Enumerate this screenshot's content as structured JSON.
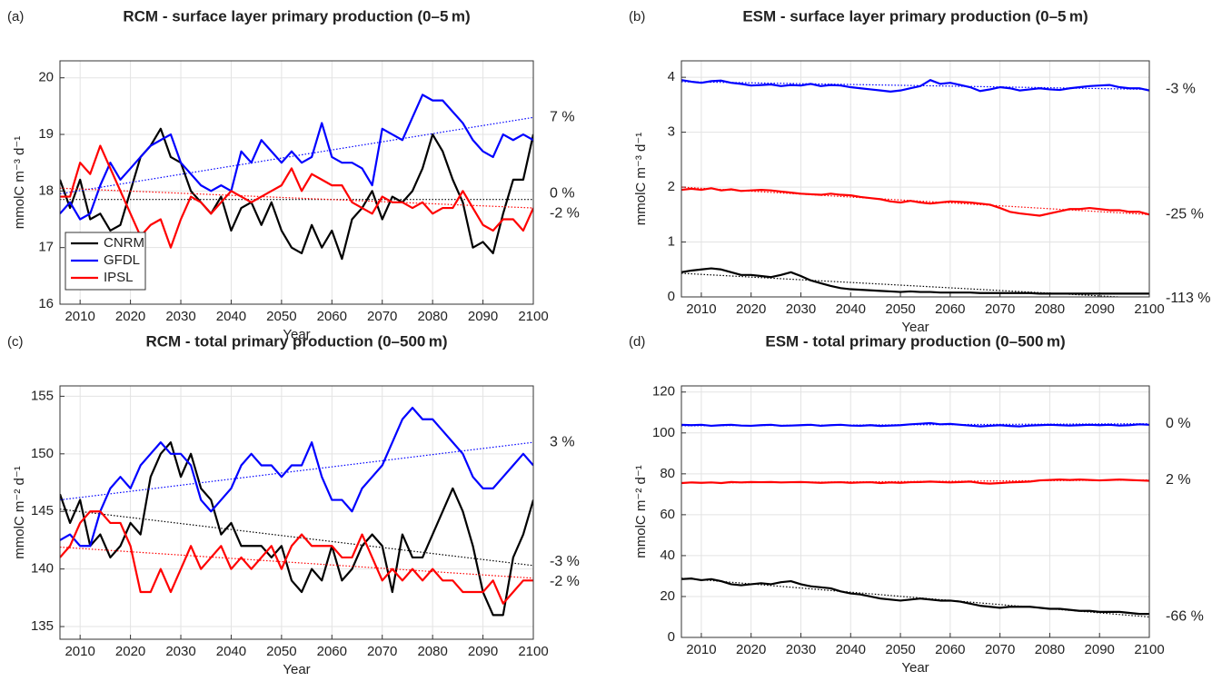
{
  "chart_data": [
    {
      "type": "line",
      "label": "(a)",
      "title": "RCM - surface layer primary production (0–5 m)",
      "xlabel": "Year",
      "ylabel": "mmolC m⁻³ d⁻¹",
      "xlim": [
        2006,
        2100
      ],
      "xticks": [
        2010,
        2020,
        2030,
        2040,
        2050,
        2060,
        2070,
        2080,
        2090,
        2100
      ],
      "ylim": [
        16,
        20.3
      ],
      "yticks": [
        16,
        17,
        18,
        19,
        20
      ],
      "grid": true,
      "legend": "lower left",
      "x": [
        2006,
        2008,
        2010,
        2012,
        2014,
        2016,
        2018,
        2020,
        2022,
        2024,
        2026,
        2028,
        2030,
        2032,
        2034,
        2036,
        2038,
        2040,
        2042,
        2044,
        2046,
        2048,
        2050,
        2052,
        2054,
        2056,
        2058,
        2060,
        2062,
        2064,
        2066,
        2068,
        2070,
        2072,
        2074,
        2076,
        2078,
        2080,
        2082,
        2084,
        2086,
        2088,
        2090,
        2092,
        2094,
        2096,
        2098,
        2100
      ],
      "series": [
        {
          "name": "CNRM",
          "color": "#000000",
          "annotation": "0 %",
          "trend": [
            17.85,
            17.85
          ],
          "values": [
            18.2,
            17.7,
            18.2,
            17.5,
            17.6,
            17.3,
            17.4,
            18.0,
            18.6,
            18.8,
            19.1,
            18.6,
            18.5,
            18.0,
            17.8,
            17.6,
            17.9,
            17.3,
            17.7,
            17.8,
            17.4,
            17.8,
            17.3,
            17.0,
            16.9,
            17.4,
            17.0,
            17.3,
            16.8,
            17.5,
            17.7,
            18.0,
            17.5,
            17.9,
            17.8,
            18.0,
            18.4,
            19.0,
            18.7,
            18.2,
            17.8,
            17.0,
            17.1,
            16.9,
            17.6,
            18.2,
            18.2,
            19.0
          ]
        },
        {
          "name": "GFDL",
          "color": "#0000ff",
          "annotation": "7 %",
          "trend": [
            17.95,
            19.3
          ],
          "values": [
            17.6,
            17.8,
            17.5,
            17.6,
            18.1,
            18.5,
            18.2,
            18.4,
            18.6,
            18.8,
            18.9,
            19.0,
            18.5,
            18.3,
            18.1,
            18.0,
            18.1,
            18.0,
            18.7,
            18.5,
            18.9,
            18.7,
            18.5,
            18.7,
            18.5,
            18.6,
            19.2,
            18.6,
            18.5,
            18.5,
            18.4,
            18.1,
            19.1,
            19.0,
            18.9,
            19.3,
            19.7,
            19.6,
            19.6,
            19.4,
            19.2,
            18.9,
            18.7,
            18.6,
            19.0,
            18.9,
            19.0,
            18.9
          ]
        },
        {
          "name": "IPSL",
          "color": "#ff0000",
          "annotation": "-2 %",
          "trend": [
            18.05,
            17.7
          ],
          "values": [
            17.9,
            17.9,
            18.5,
            18.3,
            18.8,
            18.4,
            18.0,
            17.6,
            17.2,
            17.4,
            17.5,
            17.0,
            17.5,
            17.9,
            17.8,
            17.6,
            17.8,
            18.0,
            17.9,
            17.8,
            17.9,
            18.0,
            18.1,
            18.4,
            18.0,
            18.3,
            18.2,
            18.1,
            18.1,
            17.8,
            17.7,
            17.6,
            17.9,
            17.8,
            17.8,
            17.7,
            17.8,
            17.6,
            17.7,
            17.7,
            18.0,
            17.7,
            17.4,
            17.3,
            17.5,
            17.5,
            17.3,
            17.7
          ]
        }
      ]
    },
    {
      "type": "line",
      "label": "(b)",
      "title": "ESM - surface layer primary production (0–5 m)",
      "xlabel": "Year",
      "ylabel": "mmolC m⁻³ d⁻¹",
      "xlim": [
        2006,
        2100
      ],
      "xticks": [
        2010,
        2020,
        2030,
        2040,
        2050,
        2060,
        2070,
        2080,
        2090,
        2100
      ],
      "ylim": [
        0,
        4.3
      ],
      "yticks": [
        0,
        1,
        2,
        3,
        4
      ],
      "grid": true,
      "x": [
        2006,
        2008,
        2010,
        2012,
        2014,
        2016,
        2018,
        2020,
        2022,
        2024,
        2026,
        2028,
        2030,
        2032,
        2034,
        2036,
        2038,
        2040,
        2042,
        2044,
        2046,
        2048,
        2050,
        2052,
        2054,
        2056,
        2058,
        2060,
        2062,
        2064,
        2066,
        2068,
        2070,
        2072,
        2074,
        2076,
        2078,
        2080,
        2082,
        2084,
        2086,
        2088,
        2090,
        2092,
        2094,
        2096,
        2098,
        2100
      ],
      "series": [
        {
          "name": "CNRM",
          "color": "#000000",
          "annotation": "-113 %",
          "trend": [
            0.43,
            -0.03
          ],
          "values": [
            0.45,
            0.48,
            0.5,
            0.52,
            0.5,
            0.45,
            0.4,
            0.4,
            0.38,
            0.36,
            0.4,
            0.45,
            0.38,
            0.3,
            0.25,
            0.2,
            0.16,
            0.14,
            0.13,
            0.12,
            0.11,
            0.1,
            0.09,
            0.1,
            0.09,
            0.09,
            0.08,
            0.08,
            0.08,
            0.08,
            0.07,
            0.07,
            0.07,
            0.07,
            0.07,
            0.07,
            0.06,
            0.06,
            0.06,
            0.06,
            0.06,
            0.06,
            0.06,
            0.06,
            0.06,
            0.06,
            0.06,
            0.06
          ]
        },
        {
          "name": "GFDL",
          "color": "#0000ff",
          "annotation": "-3 %",
          "trend": [
            3.92,
            3.78
          ],
          "values": [
            3.95,
            3.92,
            3.9,
            3.93,
            3.94,
            3.9,
            3.88,
            3.85,
            3.86,
            3.87,
            3.84,
            3.86,
            3.85,
            3.88,
            3.84,
            3.86,
            3.85,
            3.82,
            3.8,
            3.78,
            3.76,
            3.74,
            3.76,
            3.8,
            3.84,
            3.95,
            3.88,
            3.9,
            3.86,
            3.82,
            3.75,
            3.78,
            3.82,
            3.8,
            3.76,
            3.78,
            3.8,
            3.78,
            3.77,
            3.8,
            3.82,
            3.84,
            3.85,
            3.86,
            3.82,
            3.8,
            3.8,
            3.76
          ]
        },
        {
          "name": "IPSL",
          "color": "#ff0000",
          "annotation": "-25 %",
          "trend": [
            2.0,
            1.5
          ],
          "values": [
            1.95,
            1.97,
            1.95,
            1.98,
            1.94,
            1.96,
            1.93,
            1.94,
            1.95,
            1.94,
            1.92,
            1.9,
            1.88,
            1.87,
            1.86,
            1.88,
            1.86,
            1.85,
            1.82,
            1.8,
            1.78,
            1.74,
            1.72,
            1.75,
            1.72,
            1.7,
            1.72,
            1.74,
            1.73,
            1.72,
            1.7,
            1.68,
            1.62,
            1.55,
            1.52,
            1.5,
            1.48,
            1.52,
            1.56,
            1.6,
            1.6,
            1.62,
            1.6,
            1.58,
            1.58,
            1.55,
            1.55,
            1.5
          ]
        }
      ]
    },
    {
      "type": "line",
      "label": "(c)",
      "title": "RCM - total primary production (0–500 m)",
      "xlabel": "Year",
      "ylabel": "mmolC m⁻² d⁻¹",
      "xlim": [
        2006,
        2100
      ],
      "xticks": [
        2010,
        2020,
        2030,
        2040,
        2050,
        2060,
        2070,
        2080,
        2090,
        2100
      ],
      "ylim": [
        133.9,
        155.9
      ],
      "yticks": [
        135,
        140,
        145,
        150,
        155
      ],
      "grid": true,
      "x": [
        2006,
        2008,
        2010,
        2012,
        2014,
        2016,
        2018,
        2020,
        2022,
        2024,
        2026,
        2028,
        2030,
        2032,
        2034,
        2036,
        2038,
        2040,
        2042,
        2044,
        2046,
        2048,
        2050,
        2052,
        2054,
        2056,
        2058,
        2060,
        2062,
        2064,
        2066,
        2068,
        2070,
        2072,
        2074,
        2076,
        2078,
        2080,
        2082,
        2084,
        2086,
        2088,
        2090,
        2092,
        2094,
        2096,
        2098,
        2100
      ],
      "series": [
        {
          "name": "CNRM",
          "color": "#000000",
          "annotation": "-3 %",
          "trend": [
            145.2,
            140.3
          ],
          "values": [
            146.5,
            144,
            146,
            142,
            143,
            141,
            142,
            144,
            143,
            148,
            150,
            151,
            148,
            150,
            147,
            146,
            143,
            144,
            142,
            142,
            142,
            141,
            142,
            139,
            138,
            140,
            139,
            142,
            139,
            140,
            142,
            143,
            142,
            138,
            143,
            141,
            141,
            143,
            145,
            147,
            145,
            142,
            138,
            136,
            136,
            141,
            143,
            146
          ]
        },
        {
          "name": "GFDL",
          "color": "#0000ff",
          "annotation": "3 %",
          "trend": [
            146,
            151
          ],
          "values": [
            142.5,
            143,
            142,
            142,
            145,
            147,
            148,
            147,
            149,
            150,
            151,
            150,
            150,
            149,
            146,
            145,
            146,
            147,
            149,
            150,
            149,
            149,
            148,
            149,
            149,
            151,
            148,
            146,
            146,
            145,
            147,
            148,
            149,
            151,
            153,
            154,
            153,
            153,
            152,
            151,
            150,
            148,
            147,
            147,
            148,
            149,
            150,
            149
          ]
        },
        {
          "name": "IPSL",
          "color": "#ff0000",
          "annotation": "-2 %",
          "trend": [
            141.9,
            139.2
          ],
          "values": [
            141,
            142,
            144,
            145,
            145,
            144,
            144,
            142,
            138,
            138,
            140,
            138,
            140,
            142,
            140,
            141,
            142,
            140,
            141,
            140,
            141,
            142,
            140,
            142,
            143,
            142,
            142,
            142,
            141,
            141,
            143,
            141,
            139,
            140,
            139,
            140,
            139,
            140,
            139,
            139,
            138,
            138,
            138,
            139,
            137,
            138,
            139,
            139
          ]
        }
      ]
    },
    {
      "type": "line",
      "label": "(d)",
      "title": "ESM - total primary production (0–500 m)",
      "xlabel": "Year",
      "ylabel": "mmolC m⁻² d⁻¹",
      "xlim": [
        2006,
        2100
      ],
      "xticks": [
        2010,
        2020,
        2030,
        2040,
        2050,
        2060,
        2070,
        2080,
        2090,
        2100
      ],
      "ylim": [
        0,
        123
      ],
      "yticks": [
        0,
        20,
        40,
        60,
        80,
        100,
        120
      ],
      "grid": true,
      "x": [
        2006,
        2008,
        2010,
        2012,
        2014,
        2016,
        2018,
        2020,
        2022,
        2024,
        2026,
        2028,
        2030,
        2032,
        2034,
        2036,
        2038,
        2040,
        2042,
        2044,
        2046,
        2048,
        2050,
        2052,
        2054,
        2056,
        2058,
        2060,
        2062,
        2064,
        2066,
        2068,
        2070,
        2072,
        2074,
        2076,
        2078,
        2080,
        2082,
        2084,
        2086,
        2088,
        2090,
        2092,
        2094,
        2096,
        2098,
        2100
      ],
      "series": [
        {
          "name": "CNRM",
          "color": "#000000",
          "annotation": "-66 %",
          "trend": [
            29,
            10
          ],
          "values": [
            28.5,
            28.8,
            28,
            28.5,
            27.5,
            26,
            25.5,
            26,
            26.5,
            26,
            27,
            27.5,
            26,
            25,
            24.5,
            24,
            22.5,
            21.5,
            21,
            20,
            19,
            18.5,
            18,
            18.5,
            19,
            18.5,
            18,
            18,
            17.5,
            16.5,
            15.5,
            15,
            14.5,
            15,
            15,
            15,
            14.5,
            14,
            14,
            13.5,
            13,
            13,
            12.5,
            12.5,
            12.5,
            12,
            11.5,
            11.5
          ]
        },
        {
          "name": "GFDL",
          "color": "#0000ff",
          "annotation": "0 %",
          "trend": [
            103.5,
            104.5
          ],
          "values": [
            104,
            103.8,
            104,
            103.5,
            103.8,
            104,
            103.6,
            103.5,
            103.8,
            104,
            103.5,
            103.6,
            103.8,
            104,
            103.5,
            103.8,
            104,
            103.6,
            103.5,
            103.8,
            103.4,
            103.6,
            103.8,
            104.2,
            104.5,
            104.8,
            104.2,
            104.4,
            104,
            103.6,
            103.2,
            103.5,
            103.8,
            103.4,
            103.2,
            103.6,
            103.8,
            104,
            103.8,
            103.6,
            103.8,
            104,
            103.8,
            104,
            103.6,
            103.8,
            104.2,
            104
          ]
        },
        {
          "name": "IPSL",
          "color": "#ff0000",
          "annotation": "2 %",
          "trend": [
            75.5,
            77
          ],
          "values": [
            75.5,
            75.8,
            75.6,
            75.8,
            75.5,
            76,
            75.8,
            76,
            75.9,
            76,
            75.8,
            75.9,
            76,
            75.8,
            75.6,
            75.8,
            75.9,
            75.6,
            75.8,
            75.9,
            75.5,
            75.8,
            75.6,
            75.9,
            76,
            76.2,
            76,
            75.8,
            76,
            76.2,
            75.5,
            75.2,
            75.5,
            75.8,
            76,
            76.2,
            76.8,
            77,
            77.2,
            77,
            77.2,
            77,
            76.8,
            77,
            77.2,
            77,
            76.8,
            76.6
          ]
        }
      ]
    }
  ]
}
